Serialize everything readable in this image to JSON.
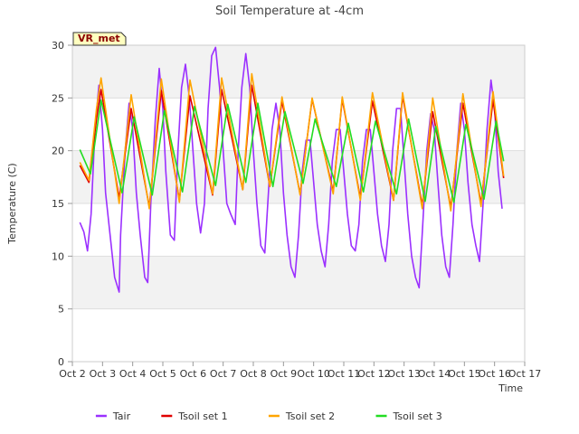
{
  "chart_data": {
    "type": "line",
    "title": "Soil Temperature at -4cm",
    "xlabel": "Time",
    "ylabel": "Temperature (C)",
    "badge": "VR_met",
    "xlim": [
      2,
      17
    ],
    "ylim": [
      0,
      30
    ],
    "x_ticks": [
      2,
      3,
      4,
      5,
      6,
      7,
      8,
      9,
      10,
      11,
      12,
      13,
      14,
      15,
      16,
      17
    ],
    "x_tick_labels": [
      "Oct 2",
      "Oct 3",
      "Oct 4",
      "Oct 5",
      "Oct 6",
      "Oct 7",
      "Oct 8",
      "Oct 9",
      "Oct 10",
      "Oct 11",
      "Oct 12",
      "Oct 13",
      "Oct 14",
      "Oct 15",
      "Oct 16",
      "Oct 17"
    ],
    "y_ticks": [
      0,
      5,
      10,
      15,
      20,
      25,
      30
    ],
    "legend_position": "bottom-center",
    "series": [
      {
        "name": "Tair",
        "color": "#9b30ff",
        "x": [
          2.25,
          2.38,
          2.5,
          2.62,
          2.75,
          2.88,
          3.0,
          3.1,
          3.25,
          3.4,
          3.55,
          3.6,
          3.75,
          3.88,
          4.0,
          4.12,
          4.25,
          4.4,
          4.5,
          4.6,
          4.75,
          4.88,
          5.0,
          5.1,
          5.25,
          5.38,
          5.5,
          5.62,
          5.75,
          5.88,
          6.0,
          6.12,
          6.25,
          6.38,
          6.5,
          6.62,
          6.75,
          6.88,
          7.0,
          7.12,
          7.25,
          7.4,
          7.5,
          7.62,
          7.75,
          7.88,
          8.0,
          8.12,
          8.25,
          8.38,
          8.5,
          8.62,
          8.75,
          8.88,
          9.0,
          9.12,
          9.25,
          9.38,
          9.5,
          9.62,
          9.75,
          9.88,
          10.0,
          10.12,
          10.25,
          10.38,
          10.5,
          10.62,
          10.75,
          10.88,
          11.0,
          11.12,
          11.25,
          11.38,
          11.5,
          11.62,
          11.75,
          11.88,
          12.0,
          12.12,
          12.25,
          12.38,
          12.5,
          12.62,
          12.75,
          12.88,
          13.0,
          13.12,
          13.25,
          13.38,
          13.5,
          13.62,
          13.75,
          13.88,
          14.0,
          14.12,
          14.25,
          14.38,
          14.5,
          14.62,
          14.75,
          14.88,
          15.0,
          15.12,
          15.25,
          15.38,
          15.5,
          15.62,
          15.75,
          15.88,
          16.0,
          16.12,
          16.25
        ],
        "y": [
          13.2,
          12.3,
          10.5,
          14.0,
          22.0,
          26.2,
          22.0,
          16.0,
          12.0,
          8.0,
          6.6,
          12.0,
          20.0,
          24.5,
          22.0,
          16.0,
          12.0,
          8.0,
          7.5,
          15.0,
          23.0,
          27.8,
          24.0,
          18.0,
          12.0,
          11.5,
          20.0,
          26.0,
          28.2,
          25.0,
          20.0,
          15.0,
          12.2,
          15.0,
          24.0,
          29.0,
          29.8,
          26.0,
          20.0,
          15.0,
          14.0,
          13.0,
          20.0,
          26.0,
          29.2,
          26.0,
          20.0,
          15.0,
          11.0,
          10.3,
          16.0,
          22.0,
          24.5,
          22.0,
          16.0,
          12.0,
          9.0,
          8.0,
          12.0,
          18.0,
          21.0,
          21.0,
          17.0,
          13.0,
          10.5,
          9.0,
          13.0,
          19.0,
          22.0,
          22.0,
          18.0,
          14.0,
          11.0,
          10.5,
          13.0,
          19.0,
          22.0,
          22.0,
          18.0,
          14.0,
          11.0,
          9.5,
          13.0,
          20.0,
          24.0,
          24.0,
          19.0,
          14.0,
          10.0,
          8.0,
          7.0,
          13.0,
          20.0,
          23.5,
          22.0,
          17.0,
          12.0,
          9.0,
          8.0,
          13.0,
          20.0,
          24.5,
          22.0,
          17.0,
          13.0,
          11.0,
          9.5,
          15.0,
          22.0,
          26.7,
          24.0,
          18.0,
          14.5
        ]
      },
      {
        "name": "Tsoil set 1",
        "color": "#e00000",
        "x": [
          2.25,
          2.55,
          2.8,
          2.95,
          3.55,
          3.95,
          4.55,
          4.95,
          5.55,
          5.9,
          6.65,
          6.95,
          7.65,
          7.95,
          8.55,
          8.95,
          9.55,
          9.95,
          10.65,
          10.95,
          11.55,
          11.95,
          12.65,
          12.95,
          13.6,
          13.95,
          14.55,
          14.95,
          15.55,
          15.95,
          16.3
        ],
        "y": [
          18.6,
          17.0,
          23.0,
          25.8,
          15.5,
          24.0,
          14.7,
          25.7,
          15.3,
          25.2,
          15.8,
          25.8,
          16.3,
          26.2,
          16.6,
          24.7,
          15.9,
          24.9,
          16.1,
          24.9,
          15.5,
          24.7,
          15.3,
          25.2,
          14.8,
          23.7,
          14.6,
          24.5,
          15.0,
          24.8,
          17.4
        ]
      },
      {
        "name": "Tsoil set 2",
        "color": "#ffa500",
        "x": [
          2.25,
          2.55,
          2.8,
          2.95,
          3.55,
          3.95,
          4.55,
          4.95,
          5.55,
          5.9,
          6.65,
          6.95,
          7.65,
          7.95,
          8.55,
          8.95,
          9.55,
          9.95,
          10.65,
          10.95,
          11.55,
          11.95,
          12.65,
          12.95,
          13.6,
          13.95,
          14.55,
          14.95,
          15.55,
          15.95,
          16.3
        ],
        "y": [
          18.9,
          17.2,
          24.0,
          26.9,
          15.0,
          25.3,
          14.5,
          26.8,
          15.1,
          26.7,
          15.9,
          26.9,
          16.3,
          27.3,
          16.6,
          25.1,
          15.8,
          25.0,
          15.9,
          25.1,
          15.3,
          25.5,
          15.3,
          25.5,
          14.5,
          25.0,
          14.3,
          25.4,
          14.7,
          25.6,
          17.6
        ]
      },
      {
        "name": "Tsoil set 3",
        "color": "#22dd22",
        "x": [
          2.25,
          2.6,
          2.95,
          3.65,
          4.05,
          4.65,
          5.05,
          5.65,
          6.05,
          6.75,
          7.15,
          7.75,
          8.15,
          8.65,
          9.05,
          9.65,
          10.05,
          10.75,
          11.15,
          11.65,
          12.05,
          12.75,
          13.15,
          13.7,
          14.05,
          14.65,
          15.05,
          15.65,
          16.05,
          16.3
        ],
        "y": [
          20.1,
          17.8,
          24.8,
          16.0,
          23.2,
          15.8,
          23.8,
          16.1,
          24.2,
          16.7,
          24.4,
          17.0,
          24.5,
          16.6,
          23.7,
          16.9,
          23.0,
          16.6,
          22.6,
          16.1,
          22.8,
          15.9,
          23.0,
          15.2,
          22.3,
          15.1,
          22.5,
          15.4,
          22.8,
          19.0
        ]
      }
    ]
  }
}
